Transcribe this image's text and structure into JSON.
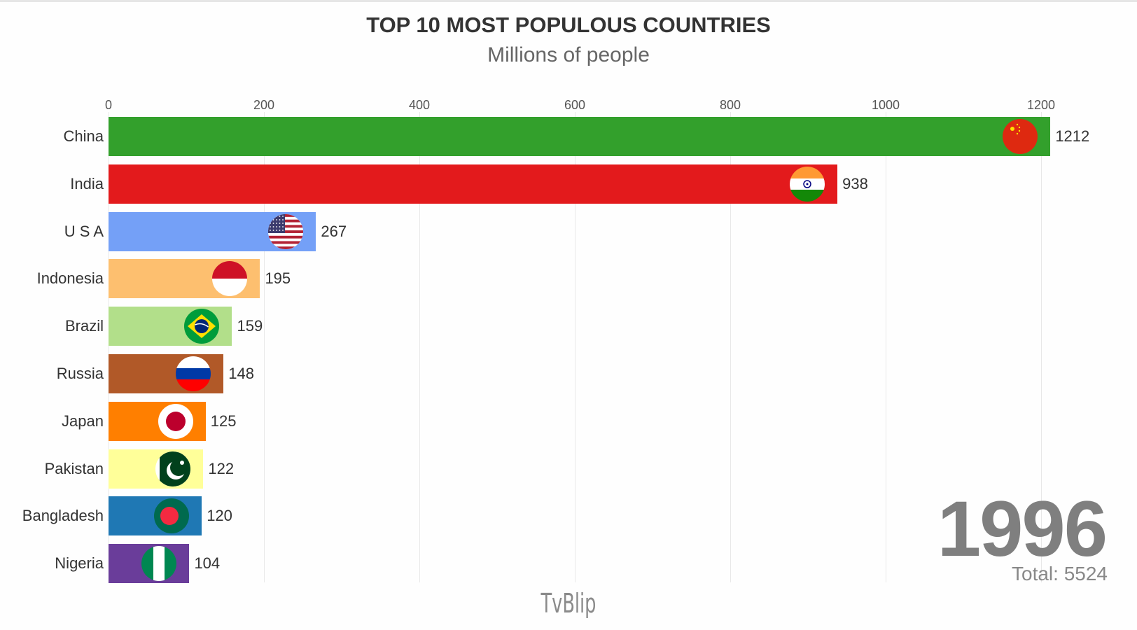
{
  "header": {
    "title": "TOP 10 MOST POPULOUS COUNTRIES",
    "subtitle": "Millions of people"
  },
  "ticks": [
    "0",
    "200",
    "400",
    "600",
    "800",
    "1000",
    "1200"
  ],
  "rows": [
    {
      "country": "China",
      "value": "1212",
      "color": "#33a02c",
      "flag": "china"
    },
    {
      "country": "India",
      "value": "938",
      "color": "#e31a1c",
      "flag": "india"
    },
    {
      "country": "U S A",
      "value": "267",
      "color": "#74a0f7",
      "flag": "usa"
    },
    {
      "country": "Indonesia",
      "value": "195",
      "color": "#fdbf6f",
      "flag": "indonesia"
    },
    {
      "country": "Brazil",
      "value": "159",
      "color": "#b2df8a",
      "flag": "brazil"
    },
    {
      "country": "Russia",
      "value": "148",
      "color": "#b15928",
      "flag": "russia"
    },
    {
      "country": "Japan",
      "value": "125",
      "color": "#ff7f00",
      "flag": "japan"
    },
    {
      "country": "Pakistan",
      "value": "122",
      "color": "#ffff99",
      "flag": "pakistan"
    },
    {
      "country": "Bangladesh",
      "value": "120",
      "color": "#1f78b4",
      "flag": "bangladesh"
    },
    {
      "country": "Nigeria",
      "value": "104",
      "color": "#6a3d9a",
      "flag": "nigeria"
    }
  ],
  "year": "1996",
  "total": "Total: 5524",
  "watermark": "TvBlip",
  "chart_data": {
    "type": "bar",
    "orientation": "horizontal",
    "title": "TOP 10 MOST POPULOUS COUNTRIES",
    "subtitle": "Millions of people",
    "categories": [
      "China",
      "India",
      "U S A",
      "Indonesia",
      "Brazil",
      "Russia",
      "Japan",
      "Pakistan",
      "Bangladesh",
      "Nigeria"
    ],
    "values": [
      1212,
      938,
      267,
      195,
      159,
      148,
      125,
      122,
      120,
      104
    ],
    "colors": [
      "#33a02c",
      "#e31a1c",
      "#74a0f7",
      "#fdbf6f",
      "#b2df8a",
      "#b15928",
      "#ff7f00",
      "#ffff99",
      "#1f78b4",
      "#6a3d9a"
    ],
    "xlabel": "",
    "ylabel": "",
    "xlim": [
      0,
      1250
    ],
    "xticks": [
      0,
      200,
      400,
      600,
      800,
      1000,
      1200
    ],
    "grid": true,
    "axis_position": "top",
    "annotations": [
      "1996",
      "Total: 5524"
    ]
  }
}
